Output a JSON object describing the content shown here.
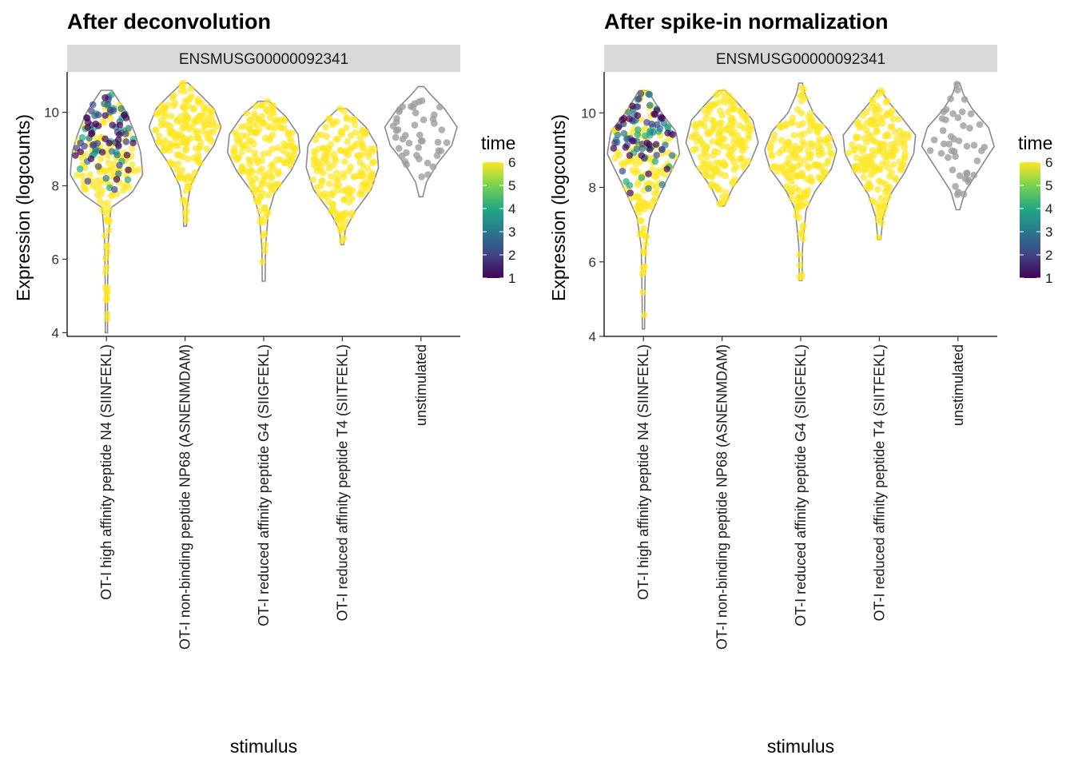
{
  "chart_data": [
    {
      "type": "violin",
      "title": "After deconvolution",
      "facet": "ENSMUSG00000092341",
      "xlabel": "stimulus",
      "ylabel": "Expression (logcounts)",
      "ylim": [
        3.9,
        11.1
      ],
      "yticks": [
        4,
        6,
        8,
        10
      ],
      "categories": [
        "OT-I high affinity peptide N4 (SIINFEKL)",
        "OT-I non-binding peptide NP68 (ASNENMDAM)",
        "OT-I reduced affinity peptide G4 (SIIGFEKL)",
        "OT-I reduced affinity peptide T4 (SIITFEKL)",
        "unstimulated"
      ],
      "violins": [
        {
          "min": 4.0,
          "max": 10.6,
          "median": 8.4,
          "n": 210,
          "profile": [
            [
              4.0,
              0.03
            ],
            [
              5.0,
              0.03
            ],
            [
              6.5,
              0.05
            ],
            [
              7.4,
              0.12
            ],
            [
              7.8,
              0.7
            ],
            [
              8.3,
              1.0
            ],
            [
              8.9,
              0.95
            ],
            [
              9.4,
              0.8
            ],
            [
              10.0,
              0.55
            ],
            [
              10.6,
              0.15
            ]
          ]
        },
        {
          "min": 6.9,
          "max": 10.8,
          "median": 9.6,
          "n": 170,
          "profile": [
            [
              6.9,
              0.04
            ],
            [
              7.4,
              0.05
            ],
            [
              8.0,
              0.15
            ],
            [
              8.6,
              0.45
            ],
            [
              9.1,
              0.8
            ],
            [
              9.6,
              1.0
            ],
            [
              10.1,
              0.8
            ],
            [
              10.5,
              0.4
            ],
            [
              10.8,
              0.08
            ]
          ]
        },
        {
          "min": 5.4,
          "max": 10.3,
          "median": 9.2,
          "n": 170,
          "profile": [
            [
              5.4,
              0.04
            ],
            [
              6.3,
              0.05
            ],
            [
              7.2,
              0.12
            ],
            [
              7.8,
              0.3
            ],
            [
              8.4,
              0.75
            ],
            [
              8.9,
              1.0
            ],
            [
              9.4,
              0.95
            ],
            [
              9.9,
              0.6
            ],
            [
              10.3,
              0.15
            ]
          ]
        },
        {
          "min": 6.4,
          "max": 10.1,
          "median": 8.8,
          "n": 170,
          "profile": [
            [
              6.4,
              0.04
            ],
            [
              6.8,
              0.08
            ],
            [
              7.3,
              0.35
            ],
            [
              7.9,
              0.8
            ],
            [
              8.5,
              1.0
            ],
            [
              9.1,
              0.95
            ],
            [
              9.6,
              0.65
            ],
            [
              10.1,
              0.12
            ]
          ]
        },
        {
          "min": 7.7,
          "max": 10.7,
          "median": 9.6,
          "n": 45,
          "profile": [
            [
              7.7,
              0.05
            ],
            [
              8.1,
              0.15
            ],
            [
              8.6,
              0.45
            ],
            [
              9.1,
              0.85
            ],
            [
              9.6,
              1.0
            ],
            [
              10.1,
              0.65
            ],
            [
              10.5,
              0.25
            ],
            [
              10.7,
              0.08
            ]
          ]
        }
      ]
    },
    {
      "type": "violin",
      "title": "After spike-in normalization",
      "facet": "ENSMUSG00000092341",
      "xlabel": "stimulus",
      "ylabel": "Expression (logcounts)",
      "ylim": [
        4.0,
        11.1
      ],
      "yticks": [
        4,
        6,
        8,
        10
      ],
      "categories": [
        "OT-I high affinity peptide N4 (SIINFEKL)",
        "OT-I non-binding peptide NP68 (ASNENMDAM)",
        "OT-I reduced affinity peptide G4 (SIIGFEKL)",
        "OT-I reduced affinity peptide T4 (SIITFEKL)",
        "unstimulated"
      ],
      "violins": [
        {
          "min": 4.2,
          "max": 10.6,
          "median": 8.9,
          "n": 210,
          "profile": [
            [
              4.2,
              0.03
            ],
            [
              5.2,
              0.04
            ],
            [
              6.4,
              0.06
            ],
            [
              7.2,
              0.18
            ],
            [
              7.8,
              0.45
            ],
            [
              8.4,
              0.75
            ],
            [
              8.9,
              1.0
            ],
            [
              9.5,
              0.9
            ],
            [
              10.0,
              0.5
            ],
            [
              10.6,
              0.12
            ]
          ]
        },
        {
          "min": 7.5,
          "max": 10.6,
          "median": 9.3,
          "n": 170,
          "profile": [
            [
              7.5,
              0.06
            ],
            [
              8.0,
              0.3
            ],
            [
              8.6,
              0.75
            ],
            [
              9.2,
              1.0
            ],
            [
              9.8,
              0.85
            ],
            [
              10.3,
              0.4
            ],
            [
              10.6,
              0.08
            ]
          ]
        },
        {
          "min": 5.5,
          "max": 10.8,
          "median": 8.9,
          "n": 170,
          "profile": [
            [
              5.5,
              0.04
            ],
            [
              6.4,
              0.05
            ],
            [
              7.4,
              0.15
            ],
            [
              7.9,
              0.4
            ],
            [
              8.5,
              0.85
            ],
            [
              9.0,
              1.0
            ],
            [
              9.5,
              0.8
            ],
            [
              10.0,
              0.35
            ],
            [
              10.5,
              0.12
            ],
            [
              10.8,
              0.05
            ]
          ]
        },
        {
          "min": 6.6,
          "max": 10.6,
          "median": 9.1,
          "n": 170,
          "profile": [
            [
              6.6,
              0.04
            ],
            [
              7.2,
              0.1
            ],
            [
              7.8,
              0.3
            ],
            [
              8.4,
              0.7
            ],
            [
              8.9,
              0.95
            ],
            [
              9.4,
              1.0
            ],
            [
              9.9,
              0.6
            ],
            [
              10.3,
              0.25
            ],
            [
              10.6,
              0.05
            ]
          ]
        },
        {
          "min": 7.4,
          "max": 10.8,
          "median": 9.2,
          "n": 45,
          "profile": [
            [
              7.4,
              0.05
            ],
            [
              7.9,
              0.2
            ],
            [
              8.5,
              0.6
            ],
            [
              9.1,
              1.0
            ],
            [
              9.6,
              0.85
            ],
            [
              10.1,
              0.4
            ],
            [
              10.5,
              0.15
            ],
            [
              10.8,
              0.05
            ]
          ]
        }
      ]
    }
  ],
  "legend": {
    "title": "time",
    "ticks": [
      "1",
      "2",
      "3",
      "4",
      "5",
      "6"
    ],
    "range": [
      1,
      6
    ],
    "colors": [
      "#440154",
      "#414487",
      "#2A788E",
      "#22A884",
      "#7AD151",
      "#FDE725"
    ]
  },
  "colors": {
    "unstimulated_points": "#9e9e9e",
    "violin_outline": "#8a8a8a",
    "strip_fill": "#d9d9d9"
  }
}
